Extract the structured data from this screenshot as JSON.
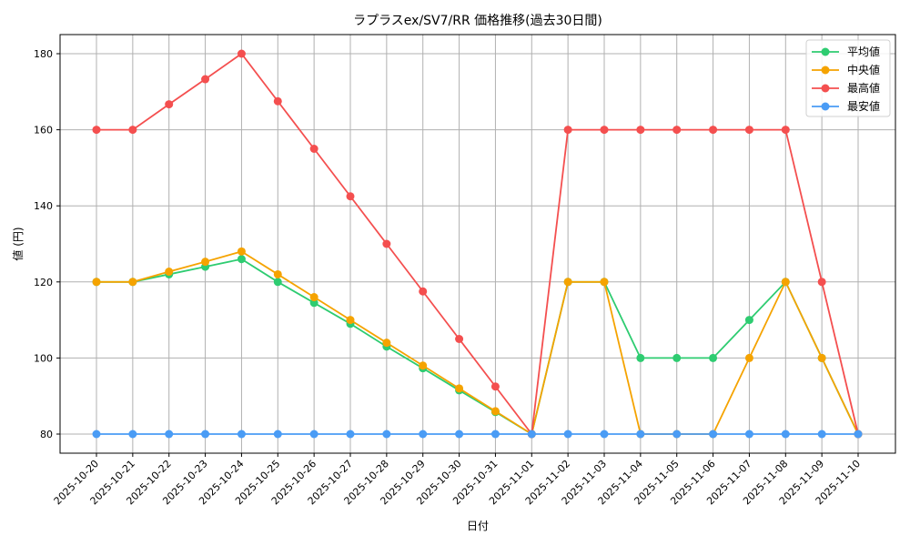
{
  "chart_data": {
    "type": "line",
    "title": "ラプラスex/SV7/RR 価格推移(過去30日間)",
    "xlabel": "日付",
    "ylabel": "値 (円)",
    "ylim": [
      75,
      185
    ],
    "yticks": [
      80,
      100,
      120,
      140,
      160,
      180
    ],
    "grid": true,
    "legend_position": "upper right",
    "categories": [
      "2025-10-20",
      "2025-10-21",
      "2025-10-22",
      "2025-10-23",
      "2025-10-24",
      "2025-10-25",
      "2025-10-26",
      "2025-10-27",
      "2025-10-28",
      "2025-10-29",
      "2025-10-30",
      "2025-10-31",
      "2025-11-01",
      "2025-11-02",
      "2025-11-03",
      "2025-11-04",
      "2025-11-05",
      "2025-11-06",
      "2025-11-07",
      "2025-11-08",
      "2025-11-09",
      "2025-11-10"
    ],
    "series": [
      {
        "name": "平均値",
        "color": "#2ecc71",
        "values": [
          120,
          120,
          122,
          124,
          126,
          120,
          114.5,
          109,
          103,
          97.3,
          91.5,
          85.8,
          80,
          120,
          120,
          100,
          100,
          100,
          110,
          120,
          100,
          80
        ]
      },
      {
        "name": "中央値",
        "color": "#f5a300",
        "values": [
          120,
          120,
          122.7,
          125.3,
          128,
          122,
          116,
          110,
          104,
          98,
          92,
          86,
          80,
          120,
          120,
          80,
          80,
          80,
          100,
          120,
          100,
          80
        ]
      },
      {
        "name": "最高値",
        "color": "#f44f4f",
        "values": [
          160,
          160,
          166.7,
          173.3,
          180,
          167.5,
          155,
          142.5,
          130,
          117.5,
          105,
          92.5,
          80,
          160,
          160,
          160,
          160,
          160,
          160,
          160,
          120,
          80
        ]
      },
      {
        "name": "最安値",
        "color": "#4a9cf5",
        "values": [
          80,
          80,
          80,
          80,
          80,
          80,
          80,
          80,
          80,
          80,
          80,
          80,
          80,
          80,
          80,
          80,
          80,
          80,
          80,
          80,
          80,
          80
        ]
      }
    ]
  }
}
